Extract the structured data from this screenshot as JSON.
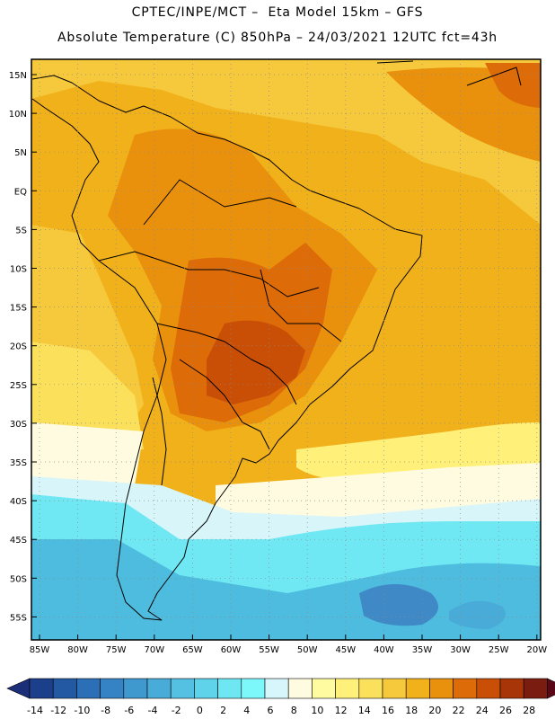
{
  "title_line1": "CPTEC/INPE/MCT –  Eta Model 15km – GFS",
  "title_line2": "Absolute Temperature (C) 850hPa – 24/03/2021 12UTC fct=43h",
  "lat_labels": [
    "15N",
    "10N",
    "5N",
    "EQ",
    "5S",
    "10S",
    "15S",
    "20S",
    "25S",
    "30S",
    "35S",
    "40S",
    "45S",
    "50S",
    "55S"
  ],
  "lon_labels": [
    "85W",
    "80W",
    "75W",
    "70W",
    "65W",
    "60W",
    "55W",
    "50W",
    "45W",
    "40W",
    "35W",
    "30W",
    "25W",
    "20W"
  ],
  "colorbar": {
    "labels": [
      "-14",
      "-12",
      "-10",
      "-8",
      "-6",
      "-4",
      "-2",
      "0",
      "2",
      "4",
      "6",
      "8",
      "10",
      "12",
      "14",
      "16",
      "18",
      "20",
      "22",
      "24",
      "26",
      "28"
    ],
    "colors": [
      "#1c3f8c",
      "#2359a3",
      "#2b6fb7",
      "#3583c5",
      "#3f99cf",
      "#49acd8",
      "#55c1e2",
      "#5fd3ea",
      "#6fe7f2",
      "#7cf8fb",
      "#d6f6fb",
      "#fffbe0",
      "#fffba0",
      "#fff07a",
      "#fbe05c",
      "#f6c93c",
      "#f1b11a",
      "#e9900d",
      "#dd6b08",
      "#c94f07",
      "#a83507",
      "#7a1c10"
    ],
    "under_color": "#1a2f78",
    "over_color": "#5a0818"
  },
  "colors": {
    "cold_south": "#4ebcde",
    "cyan": "#6fe8f3",
    "light": "#d8f5fa",
    "pale": "#fffbe0",
    "yellow": "#fff07a",
    "gold": "#f6c93c",
    "orange": "#f1b11a",
    "dark_orange": "#e9900d",
    "red_orange": "#dd6b08",
    "brick": "#c94f07",
    "deep_blue": "#3f89c7",
    "land_outline": "#000000"
  }
}
